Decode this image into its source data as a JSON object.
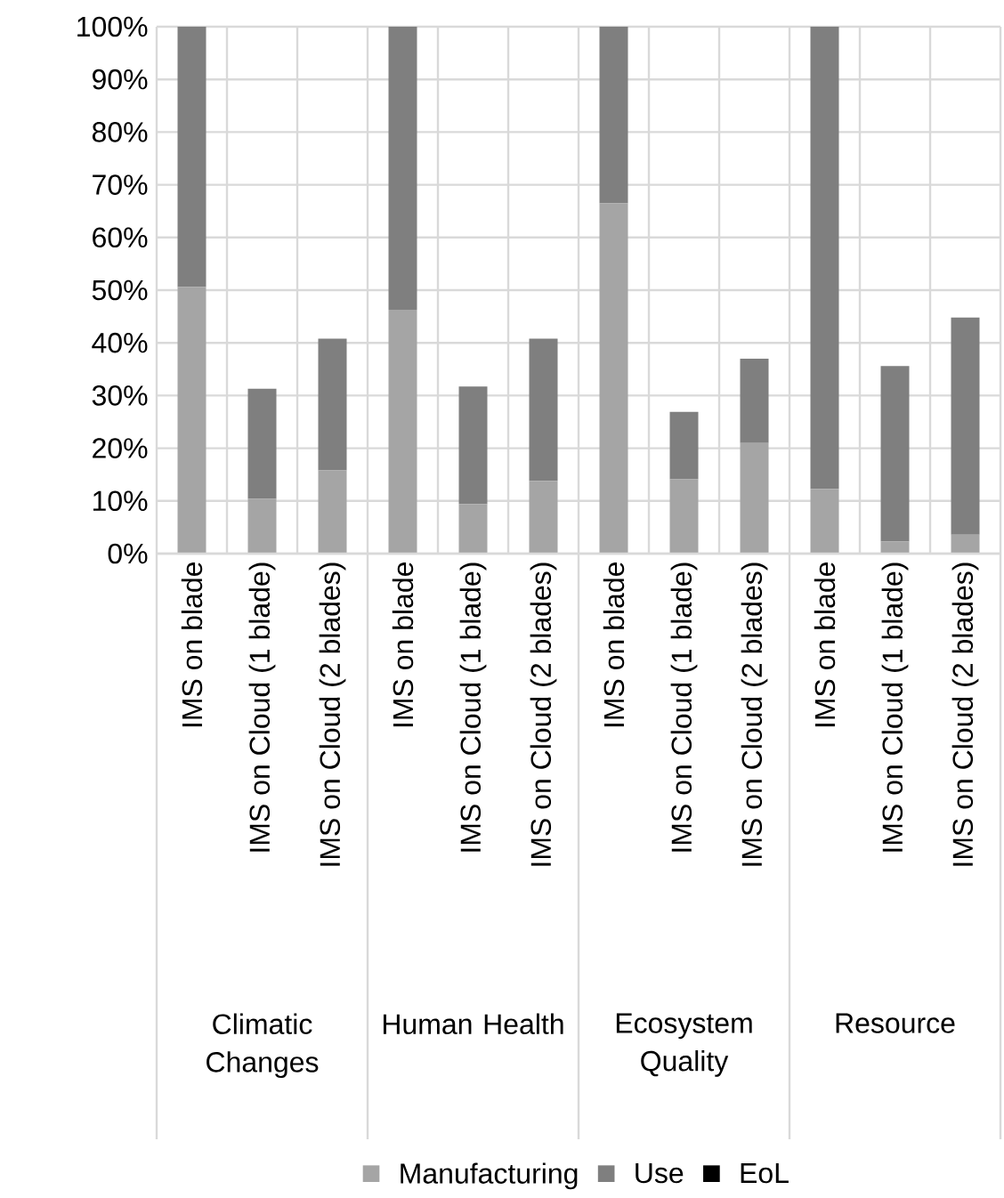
{
  "chart_data": {
    "type": "bar",
    "stacked": true,
    "categories": [
      "IMS on blade",
      "IMS on Cloud (1 blade)",
      "IMS on Cloud (2 blades)",
      "IMS on blade",
      "IMS on Cloud (1 blade)",
      "IMS on Cloud (2 blades)",
      "IMS on blade",
      "IMS on Cloud (1 blade)",
      "IMS on Cloud (2 blades)",
      "IMS on blade",
      "IMS on Cloud (1 blade)",
      "IMS on Cloud (2 blades)"
    ],
    "series": [
      {
        "name": "Manufacturing",
        "color": "#a5a5a5",
        "values": [
          50.6,
          10.4,
          15.8,
          46.3,
          9.4,
          13.8,
          66.5,
          14.1,
          21.0,
          12.3,
          2.3,
          3.6
        ]
      },
      {
        "name": "Use",
        "color": "#7f7f7f",
        "values": [
          49.4,
          20.9,
          25.0,
          53.7,
          22.3,
          27.0,
          33.5,
          12.8,
          16.0,
          87.7,
          33.3,
          41.2
        ]
      },
      {
        "name": "EoL",
        "color": "#000000",
        "values": [
          0,
          0,
          0,
          0,
          0,
          0,
          0,
          0,
          0,
          0,
          0,
          0
        ]
      }
    ],
    "ylim": [
      0,
      100
    ],
    "yticks": [
      {
        "value": 0,
        "label": "0%"
      },
      {
        "value": 10,
        "label": "10%"
      },
      {
        "value": 20,
        "label": "20%"
      },
      {
        "value": 30,
        "label": "30%"
      },
      {
        "value": 40,
        "label": "40%"
      },
      {
        "value": 50,
        "label": "50%"
      },
      {
        "value": 60,
        "label": "60%"
      },
      {
        "value": 70,
        "label": "70%"
      },
      {
        "value": 80,
        "label": "80%"
      },
      {
        "value": 90,
        "label": "90%"
      },
      {
        "value": 100,
        "label": "100%"
      }
    ],
    "annotations": [
      "Climatic Changes",
      "Human Health",
      "Ecosystem Quality",
      "Resource"
    ],
    "grid": true,
    "legend": "bottom"
  }
}
